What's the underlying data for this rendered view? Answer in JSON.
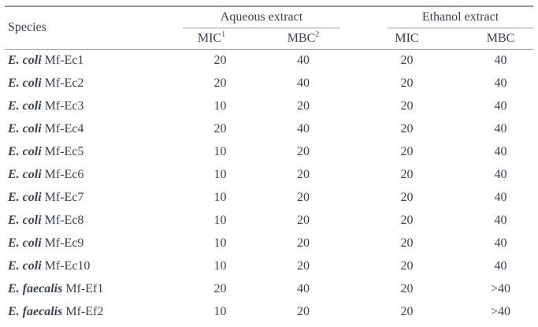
{
  "table": {
    "header": {
      "species_label": "Species",
      "groups": [
        {
          "label": "Aqueous extract"
        },
        {
          "label": "Ethanol extract"
        }
      ],
      "subcols": [
        {
          "label": "MIC",
          "sup": "1"
        },
        {
          "label": "MBC",
          "sup": "2"
        },
        {
          "label": "MIC",
          "sup": ""
        },
        {
          "label": "MBC",
          "sup": ""
        }
      ]
    },
    "rows": [
      {
        "species": "E. coli",
        "strain": "Mf-Ec1",
        "mic_aq": "20",
        "mbc_aq": "40",
        "mic_eth": "20",
        "mbc_eth": "40"
      },
      {
        "species": "E. coli",
        "strain": "Mf-Ec2",
        "mic_aq": "20",
        "mbc_aq": "40",
        "mic_eth": "20",
        "mbc_eth": "40"
      },
      {
        "species": "E. coli",
        "strain": "Mf-Ec3",
        "mic_aq": "10",
        "mbc_aq": "20",
        "mic_eth": "20",
        "mbc_eth": "40"
      },
      {
        "species": "E. coli",
        "strain": "Mf-Ec4",
        "mic_aq": "20",
        "mbc_aq": "40",
        "mic_eth": "20",
        "mbc_eth": "40"
      },
      {
        "species": "E. coli",
        "strain": "Mf-Ec5",
        "mic_aq": "10",
        "mbc_aq": "20",
        "mic_eth": "20",
        "mbc_eth": "40"
      },
      {
        "species": "E. coli",
        "strain": "Mf-Ec6",
        "mic_aq": "10",
        "mbc_aq": "20",
        "mic_eth": "20",
        "mbc_eth": "40"
      },
      {
        "species": "E. coli",
        "strain": "Mf-Ec7",
        "mic_aq": "10",
        "mbc_aq": "20",
        "mic_eth": "20",
        "mbc_eth": "40"
      },
      {
        "species": "E. coli",
        "strain": "Mf-Ec8",
        "mic_aq": "10",
        "mbc_aq": "20",
        "mic_eth": "20",
        "mbc_eth": "40"
      },
      {
        "species": "E. coli",
        "strain": "Mf-Ec9",
        "mic_aq": "10",
        "mbc_aq": "20",
        "mic_eth": "20",
        "mbc_eth": "40"
      },
      {
        "species": "E. coli",
        "strain": "Mf-Ec10",
        "mic_aq": "10",
        "mbc_aq": "20",
        "mic_eth": "20",
        "mbc_eth": "40"
      },
      {
        "species": "E. faecalis",
        "strain": "Mf-Ef1",
        "mic_aq": "20",
        "mbc_aq": "40",
        "mic_eth": "20",
        "mbc_eth": ">40"
      },
      {
        "species": "E. faecalis",
        "strain": "Mf-Ef2",
        "mic_aq": "10",
        "mbc_aq": "20",
        "mic_eth": "20",
        "mbc_eth": ">40"
      }
    ]
  },
  "colors": {
    "text": "#3b4151",
    "rule_heavy": "#8f9497",
    "rule_light": "#9aa0a3",
    "background": "#ffffff"
  }
}
